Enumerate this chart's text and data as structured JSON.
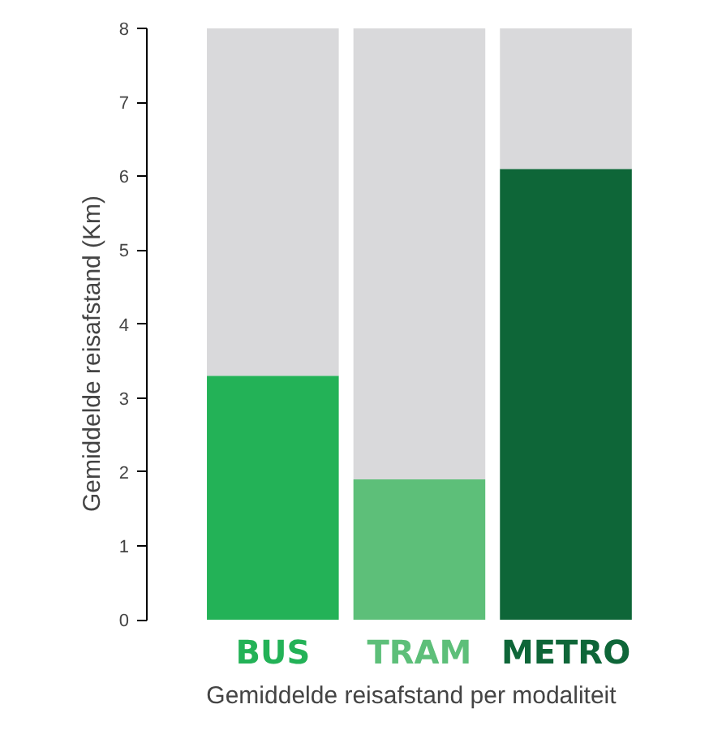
{
  "chart_data": {
    "type": "bar",
    "stacked": true,
    "xlabel": "Gemiddelde reisafstand per modaliteit",
    "ylabel": "Gemiddelde reisafstand (Km)",
    "categories": [
      "BUS",
      "TRAM",
      "METRO"
    ],
    "series": [
      {
        "colors": [
          "#23b257",
          "#5dbf79",
          "#0e6638"
        ],
        "values": [
          3.3,
          1.9,
          6.1
        ]
      },
      {
        "color": "#d9d9db",
        "values": [
          4.7,
          6.1,
          1.9
        ]
      }
    ],
    "ylim": [
      0,
      8
    ],
    "yticks": [
      0,
      1,
      2,
      3,
      4,
      5,
      6,
      7,
      8
    ],
    "grid": false
  }
}
